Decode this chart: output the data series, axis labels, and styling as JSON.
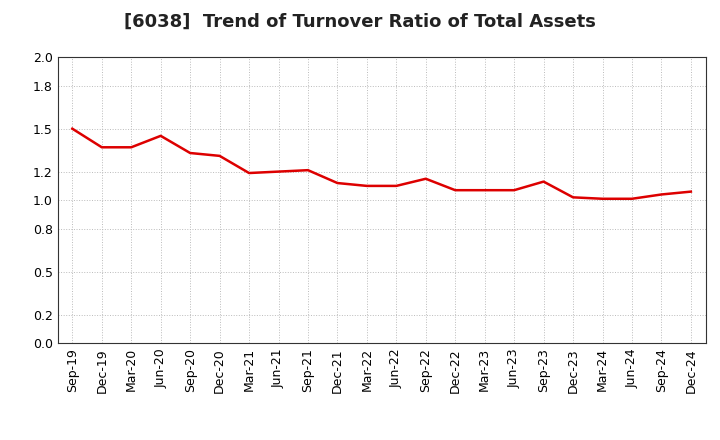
{
  "title": "[6038]  Trend of Turnover Ratio of Total Assets",
  "x_labels": [
    "Sep-19",
    "Dec-19",
    "Mar-20",
    "Jun-20",
    "Sep-20",
    "Dec-20",
    "Mar-21",
    "Jun-21",
    "Sep-21",
    "Dec-21",
    "Mar-22",
    "Jun-22",
    "Sep-22",
    "Dec-22",
    "Mar-23",
    "Jun-23",
    "Sep-23",
    "Dec-23",
    "Mar-24",
    "Jun-24",
    "Sep-24",
    "Dec-24"
  ],
  "y_values": [
    1.5,
    1.37,
    1.37,
    1.45,
    1.33,
    1.31,
    1.19,
    1.2,
    1.21,
    1.12,
    1.1,
    1.1,
    1.15,
    1.07,
    1.07,
    1.07,
    1.13,
    1.02,
    1.01,
    1.01,
    1.04,
    1.06
  ],
  "line_color": "#dd0000",
  "line_width": 1.8,
  "ylim": [
    0.0,
    2.0
  ],
  "yticks": [
    0.0,
    0.2,
    0.5,
    0.8,
    1.0,
    1.2,
    1.5,
    1.8,
    2.0
  ],
  "background_color": "#ffffff",
  "grid_color": "#bbbbbb",
  "title_fontsize": 13,
  "tick_fontsize": 9,
  "spine_color": "#333333"
}
